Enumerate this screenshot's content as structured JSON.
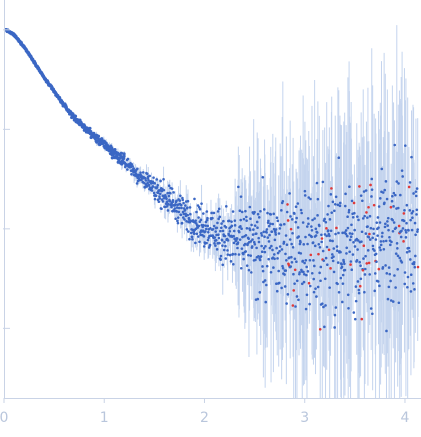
{
  "chart_data": {
    "type": "scatter",
    "title": "",
    "xlabel": "",
    "ylabel": "",
    "log_y": true,
    "xlim": [
      0,
      4.15
    ],
    "ylim": [
      -2.7,
      1.3
    ],
    "grid": false,
    "legend": "none",
    "x_ticks": [
      0,
      1,
      2,
      3,
      4
    ],
    "x_tick_labels": [
      "0",
      "1",
      "2",
      "3",
      "4"
    ],
    "y_ticks": [
      1,
      0,
      -1,
      -2
    ],
    "colors": {
      "points": "#3b67c4",
      "negative_points": "#e03a3a",
      "error_bars": "#c4d4ee",
      "axis": "#c9d3e6",
      "tick_text": "#b9c6dc"
    },
    "series": [
      {
        "x": [
          0.02,
          0.1,
          0.2,
          0.3,
          0.4,
          0.5,
          0.6,
          0.7,
          0.8,
          0.9,
          1.0,
          1.1,
          1.2,
          1.3,
          1.4,
          1.5,
          1.6,
          1.7,
          1.8,
          1.9,
          2.0,
          2.1,
          2.2,
          2.3,
          2.4,
          2.5,
          2.6,
          2.7,
          2.8,
          2.9,
          3.0,
          3.1,
          3.2,
          3.3,
          3.4,
          3.5,
          3.6,
          3.7,
          3.8,
          3.9,
          4.0,
          4.1
        ],
        "log_intensity": [
          1.0,
          0.95,
          0.83,
          0.68,
          0.52,
          0.38,
          0.24,
          0.12,
          0.02,
          -0.07,
          -0.15,
          -0.24,
          -0.33,
          -0.42,
          -0.51,
          -0.6,
          -0.68,
          -0.76,
          -0.84,
          -0.92,
          -0.98,
          -1.03,
          -1.07,
          -1.1,
          -1.13,
          -1.15,
          -1.17,
          -1.19,
          -1.2,
          -1.2,
          -1.21,
          -1.2,
          -1.19,
          -1.18,
          -1.17,
          -1.16,
          -1.14,
          -1.12,
          -1.1,
          -1.08,
          -1.06,
          -1.05
        ],
        "log_scatter": [
          0.01,
          0.01,
          0.01,
          0.01,
          0.01,
          0.02,
          0.02,
          0.03,
          0.03,
          0.04,
          0.05,
          0.06,
          0.07,
          0.09,
          0.1,
          0.12,
          0.14,
          0.16,
          0.19,
          0.22,
          0.25,
          0.29,
          0.33,
          0.37,
          0.42,
          0.47,
          0.52,
          0.56,
          0.6,
          0.63,
          0.66,
          0.68,
          0.7,
          0.72,
          0.73,
          0.74,
          0.75,
          0.76,
          0.77,
          0.78,
          0.79,
          0.8
        ]
      }
    ]
  }
}
